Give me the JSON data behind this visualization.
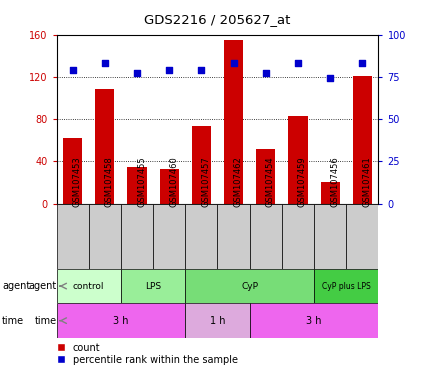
{
  "title": "GDS2216 / 205627_at",
  "samples": [
    "GSM107453",
    "GSM107458",
    "GSM107455",
    "GSM107460",
    "GSM107457",
    "GSM107462",
    "GSM107454",
    "GSM107459",
    "GSM107456",
    "GSM107461"
  ],
  "counts": [
    62,
    108,
    35,
    33,
    73,
    155,
    52,
    83,
    20,
    121
  ],
  "percentile_ranks": [
    79,
    83,
    77,
    79,
    79,
    83,
    77,
    83,
    74,
    83
  ],
  "ylim_left": [
    0,
    160
  ],
  "ylim_right": [
    0,
    100
  ],
  "yticks_left": [
    0,
    40,
    80,
    120,
    160
  ],
  "yticks_right": [
    0,
    25,
    50,
    75,
    100
  ],
  "bar_color": "#cc0000",
  "dot_color": "#0000cc",
  "agent_groups": [
    {
      "label": "control",
      "start": 0,
      "end": 2,
      "color": "#ccffcc"
    },
    {
      "label": "LPS",
      "start": 2,
      "end": 4,
      "color": "#99ee99"
    },
    {
      "label": "CyP",
      "start": 4,
      "end": 8,
      "color": "#77dd77"
    },
    {
      "label": "CyP plus LPS",
      "start": 8,
      "end": 10,
      "color": "#44cc44"
    }
  ],
  "time_groups": [
    {
      "label": "3 h",
      "start": 0,
      "end": 4,
      "color": "#ee66ee"
    },
    {
      "label": "1 h",
      "start": 4,
      "end": 6,
      "color": "#ddaadd"
    },
    {
      "label": "3 h",
      "start": 6,
      "end": 10,
      "color": "#ee66ee"
    }
  ],
  "legend_items": [
    {
      "label": "count",
      "color": "#cc0000"
    },
    {
      "label": "percentile rank within the sample",
      "color": "#0000cc"
    }
  ],
  "tick_label_color_left": "#cc0000",
  "tick_label_color_right": "#0000cc",
  "sample_box_color": "#cccccc",
  "gridline_ticks": [
    40,
    80,
    120
  ]
}
